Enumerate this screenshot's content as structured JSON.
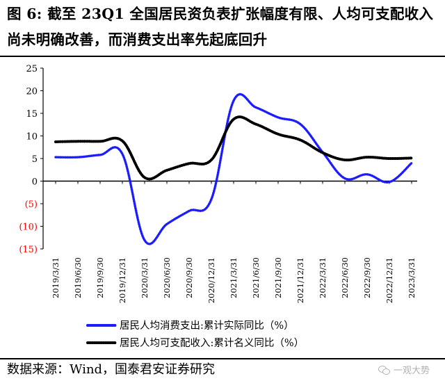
{
  "title": "图 6: 截至 23Q1 全国居民资负表扩张幅度有限、人均可支配收入尚未明确改善，而消费支出率先起底回升",
  "source": "数据来源：Wind，国泰君安证券研究",
  "watermark": "一观大势",
  "colors": {
    "series1": "#1a1aff",
    "series2": "#000000",
    "negative_tick": "#ff0000"
  },
  "chart_data": {
    "type": "line",
    "title": "",
    "xlabel": "",
    "ylabel": "",
    "ylim": [
      -15,
      25
    ],
    "yticks": [
      {
        "value": 25,
        "label": "25"
      },
      {
        "value": 20,
        "label": "20"
      },
      {
        "value": 15,
        "label": "15"
      },
      {
        "value": 10,
        "label": "10"
      },
      {
        "value": 5,
        "label": "5"
      },
      {
        "value": 0,
        "label": "0"
      },
      {
        "value": -5,
        "label": "(5)"
      },
      {
        "value": -10,
        "label": "(10)"
      },
      {
        "value": -15,
        "label": "(15)"
      }
    ],
    "categories": [
      "2019/3/31",
      "2019/6/30",
      "2019/9/30",
      "2019/12/31",
      "2020/3/31",
      "2020/6/30",
      "2020/9/30",
      "2020/12/31",
      "2021/3/31",
      "2021/6/30",
      "2021/9/30",
      "2021/12/31",
      "2022/3/31",
      "2022/6/30",
      "2022/9/30",
      "2022/12/31",
      "2023/3/31"
    ],
    "legend_position": "bottom",
    "grid": false,
    "series": [
      {
        "name": "居民人均消费支出:累计实际同比（%）",
        "color": "#1a1aff",
        "values": [
          5.3,
          5.3,
          5.8,
          6.0,
          -13.1,
          -9.5,
          -6.6,
          -4.0,
          17.8,
          16.3,
          14.1,
          12.6,
          6.4,
          0.6,
          1.5,
          -0.2,
          4.0
        ]
      },
      {
        "name": "居民人均可支配收入:累计名义同比（%）",
        "color": "#000000",
        "values": [
          8.7,
          8.8,
          8.8,
          8.9,
          0.8,
          2.4,
          3.9,
          4.7,
          13.7,
          12.6,
          10.4,
          9.1,
          6.3,
          4.7,
          5.3,
          5.0,
          5.1
        ]
      }
    ]
  }
}
